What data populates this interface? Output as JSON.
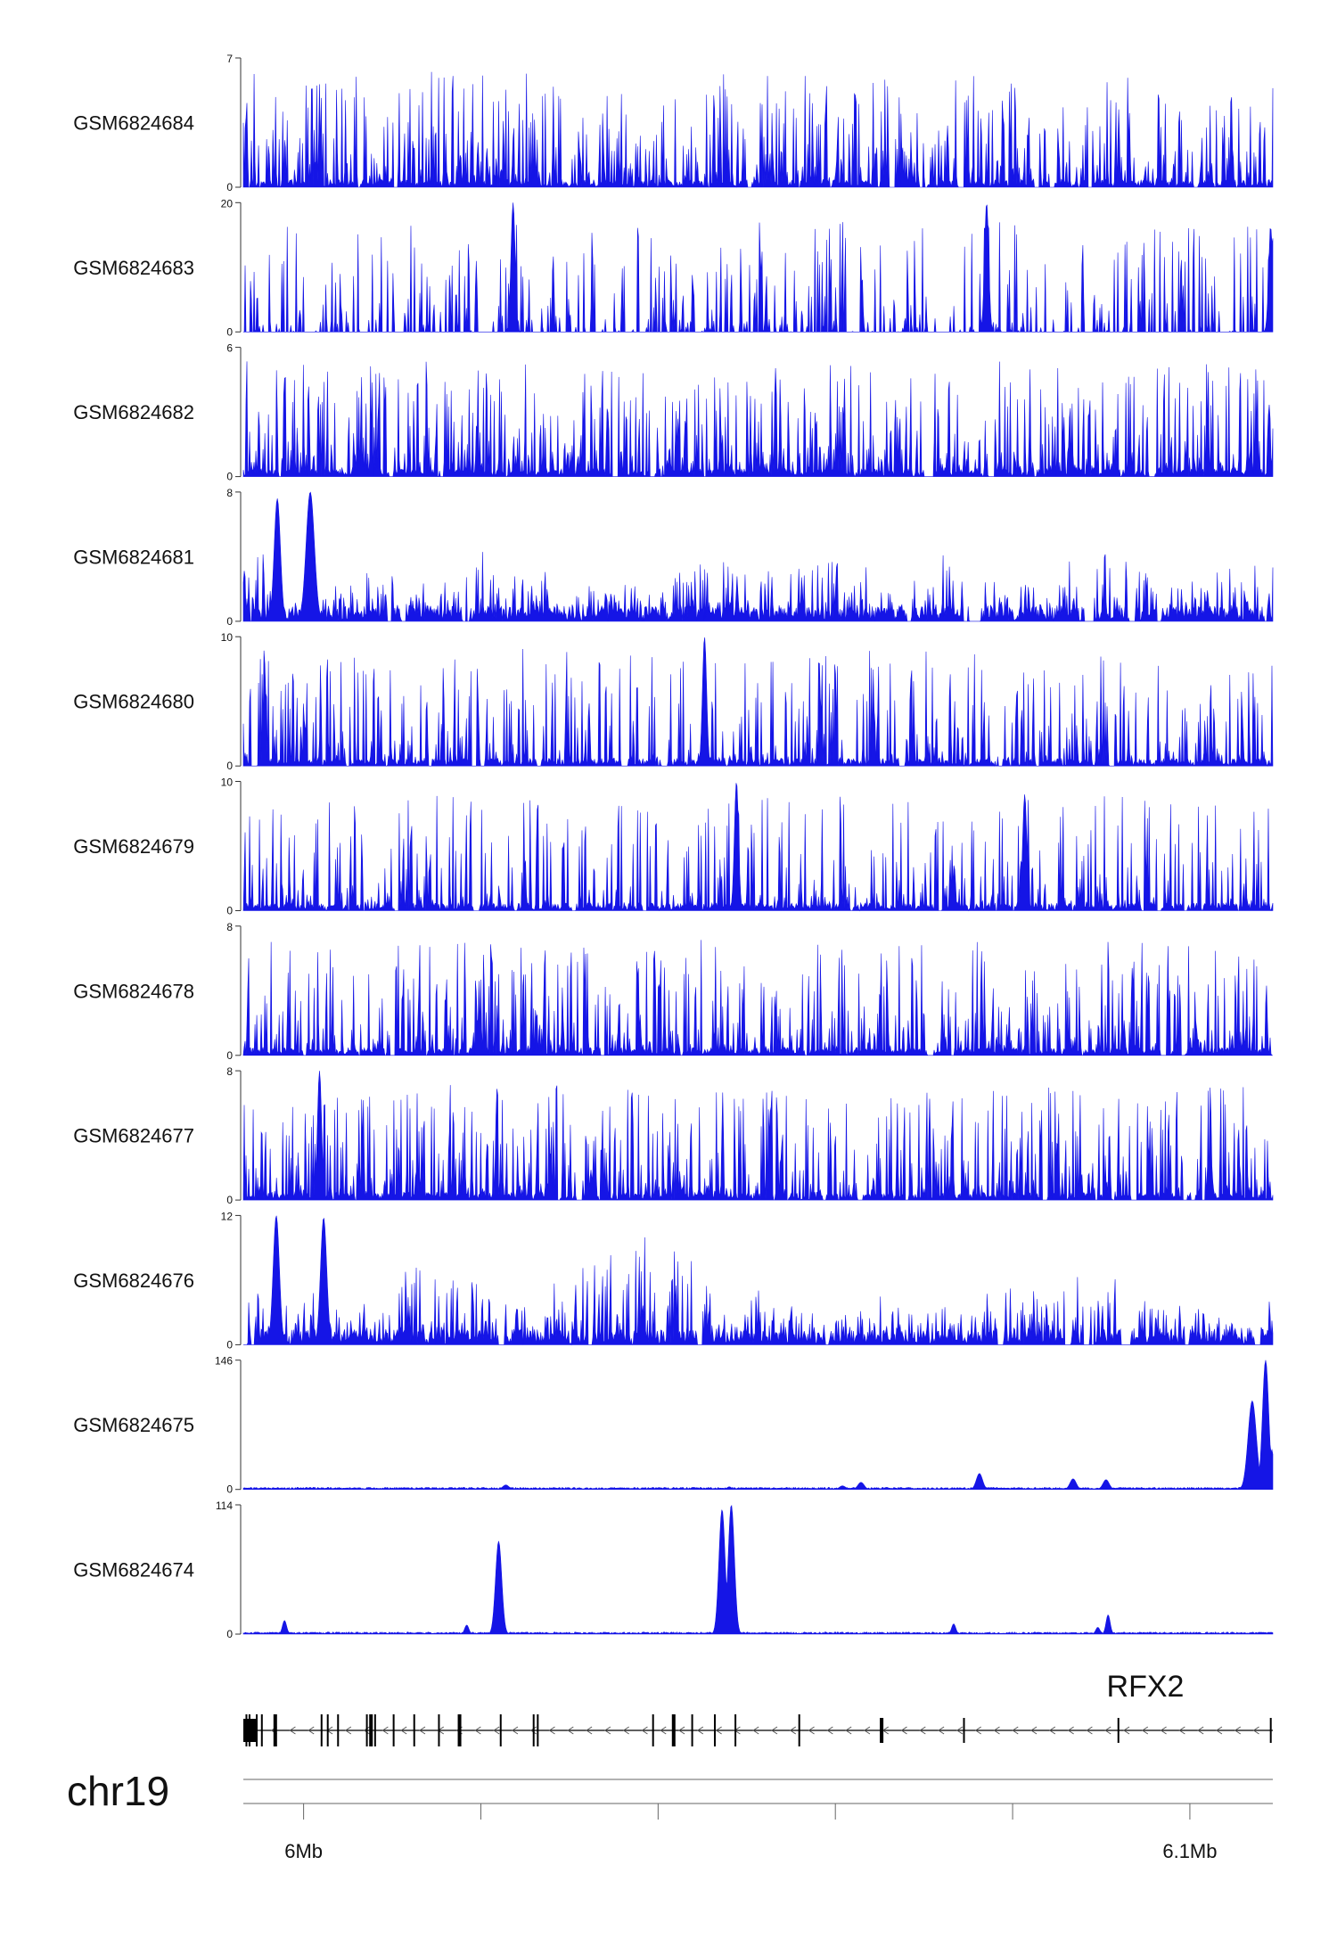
{
  "chart_data": {
    "type": "area",
    "chromosome": "chr19",
    "gene": "RFX2",
    "x_axis": {
      "range_mb": [
        5.9665,
        6.1117
      ],
      "ticks": [
        {
          "value": 5.975,
          "label": "6Mb"
        },
        {
          "value": 6.0,
          "label": ""
        },
        {
          "value": 6.025,
          "label": ""
        },
        {
          "value": 6.05,
          "label": ""
        },
        {
          "value": 6.075,
          "label": ""
        },
        {
          "value": 6.1,
          "label": "6.1Mb"
        }
      ]
    },
    "colors": {
      "signal": "#1515e6",
      "axis": "#333333",
      "gene": "#000000",
      "text": "#111111"
    },
    "tracks": [
      {
        "name": "GSM6824684",
        "ymax": 7,
        "ymin_label": "0",
        "ymax_label": "7",
        "profile": "spiky",
        "density": 0.55,
        "peaks": []
      },
      {
        "name": "GSM6824683",
        "ymax": 20,
        "ymin_label": "0",
        "ymax_label": "20",
        "profile": "sparse",
        "density": 0.45,
        "peaks": [
          {
            "pos": 0.262,
            "value": 20,
            "width": 0.002
          },
          {
            "pos": 0.722,
            "value": 20,
            "width": 0.002
          },
          {
            "pos": 0.998,
            "value": 16,
            "width": 0.002
          }
        ]
      },
      {
        "name": "GSM6824682",
        "ymax": 6,
        "ymin_label": "0",
        "ymax_label": "6",
        "profile": "spiky",
        "density": 0.6,
        "peaks": []
      },
      {
        "name": "GSM6824681",
        "ymax": 8,
        "ymin_label": "0",
        "ymax_label": "8",
        "profile": "dense",
        "density": 0.5,
        "peaks": [
          {
            "pos": 0.065,
            "value": 8,
            "width": 0.004
          },
          {
            "pos": 0.033,
            "value": 7.6,
            "width": 0.003
          }
        ]
      },
      {
        "name": "GSM6824680",
        "ymax": 10,
        "ymin_label": "0",
        "ymax_label": "10",
        "profile": "spiky",
        "density": 0.45,
        "peaks": [
          {
            "pos": 0.448,
            "value": 10,
            "width": 0.002
          }
        ]
      },
      {
        "name": "GSM6824679",
        "ymax": 10,
        "ymin_label": "0",
        "ymax_label": "10",
        "profile": "spiky",
        "density": 0.4,
        "peaks": [
          {
            "pos": 0.479,
            "value": 10,
            "width": 0.002
          },
          {
            "pos": 0.759,
            "value": 9,
            "width": 0.002
          }
        ]
      },
      {
        "name": "GSM6824678",
        "ymax": 8,
        "ymin_label": "0",
        "ymax_label": "8",
        "profile": "spiky",
        "density": 0.5,
        "peaks": []
      },
      {
        "name": "GSM6824677",
        "ymax": 8,
        "ymin_label": "0",
        "ymax_label": "8",
        "profile": "spiky",
        "density": 0.55,
        "peaks": [
          {
            "pos": 0.074,
            "value": 8,
            "width": 0.002
          }
        ]
      },
      {
        "name": "GSM6824676",
        "ymax": 12,
        "ymin_label": "0",
        "ymax_label": "12",
        "profile": "dense",
        "density": 0.55,
        "peaks": [
          {
            "pos": 0.032,
            "value": 12,
            "width": 0.003
          },
          {
            "pos": 0.078,
            "value": 11.8,
            "width": 0.003
          }
        ]
      },
      {
        "name": "GSM6824675",
        "ymax": 146,
        "ymin_label": "0",
        "ymax_label": "146",
        "profile": "flat",
        "density": 0.02,
        "peaks": [
          {
            "pos": 0.255,
            "value": 5,
            "width": 0.003
          },
          {
            "pos": 0.472,
            "value": 3,
            "width": 0.002
          },
          {
            "pos": 0.582,
            "value": 4,
            "width": 0.003
          },
          {
            "pos": 0.6,
            "value": 8,
            "width": 0.003
          },
          {
            "pos": 0.715,
            "value": 18,
            "width": 0.003
          },
          {
            "pos": 0.806,
            "value": 12,
            "width": 0.003
          },
          {
            "pos": 0.838,
            "value": 11,
            "width": 0.003
          },
          {
            "pos": 0.98,
            "value": 100,
            "width": 0.004
          },
          {
            "pos": 0.993,
            "value": 146,
            "width": 0.003
          },
          {
            "pos": 0.999,
            "value": 45,
            "width": 0.002
          }
        ]
      },
      {
        "name": "GSM6824674",
        "ymax": 114,
        "ymin_label": "0",
        "ymax_label": "114",
        "profile": "flat",
        "density": 0.02,
        "peaks": [
          {
            "pos": 0.04,
            "value": 12,
            "width": 0.002
          },
          {
            "pos": 0.217,
            "value": 8,
            "width": 0.002
          },
          {
            "pos": 0.248,
            "value": 82,
            "width": 0.003
          },
          {
            "pos": 0.465,
            "value": 110,
            "width": 0.003
          },
          {
            "pos": 0.474,
            "value": 114,
            "width": 0.003
          },
          {
            "pos": 0.69,
            "value": 9,
            "width": 0.002
          },
          {
            "pos": 0.83,
            "value": 6,
            "width": 0.002
          },
          {
            "pos": 0.84,
            "value": 17,
            "width": 0.002
          }
        ]
      }
    ],
    "gene_model": {
      "strand": "-",
      "exons": [
        0.0,
        0.003,
        0.006,
        0.013,
        0.018,
        0.031,
        0.076,
        0.082,
        0.092,
        0.12,
        0.124,
        0.128,
        0.146,
        0.166,
        0.19,
        0.21,
        0.25,
        0.282,
        0.286,
        0.398,
        0.418,
        0.436,
        0.458,
        0.478,
        0.54,
        0.62,
        0.7,
        0.85,
        0.998
      ],
      "arrow_step": 0.018
    }
  }
}
